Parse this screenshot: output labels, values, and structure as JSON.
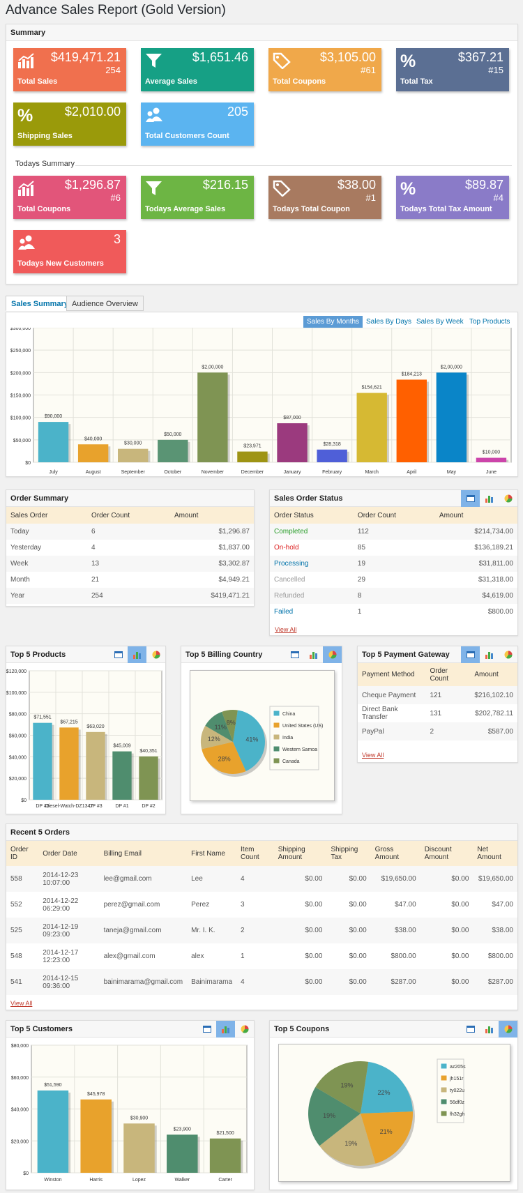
{
  "title": "Advance Sales Report (Gold Version)",
  "summary": {
    "heading": "Summary",
    "today_heading": "Todays Summary",
    "cards": [
      {
        "value": "$419,471.21",
        "sub": "254",
        "label": "Total Sales",
        "color": "#f0704e",
        "icon": "chart-icon"
      },
      {
        "value": "$1,651.46",
        "sub": "",
        "label": "Average Sales",
        "color": "#16a085",
        "icon": "funnel-icon"
      },
      {
        "value": "$3,105.00",
        "sub": "#61",
        "label": "Total Coupons",
        "color": "#f0a84a",
        "icon": "tag-icon"
      },
      {
        "value": "$367.21",
        "sub": "#15",
        "label": "Total Tax",
        "color": "#5b6f93",
        "icon": "percent-icon"
      },
      {
        "value": "$2,010.00",
        "sub": "",
        "label": "Shipping Sales",
        "color": "#9a9a0a",
        "icon": "percent-icon"
      },
      {
        "value": "205",
        "sub": "",
        "label": "Total Customers Count",
        "color": "#5bb4f0",
        "icon": "users-icon"
      }
    ],
    "today_cards": [
      {
        "value": "$1,296.87",
        "sub": "#6",
        "label": "Total Coupons",
        "color": "#e2557a",
        "icon": "chart-icon"
      },
      {
        "value": "$216.15",
        "sub": "",
        "label": "Todays Average Sales",
        "color": "#6db544",
        "icon": "funnel-icon"
      },
      {
        "value": "$38.00",
        "sub": "#1",
        "label": "Todays Total Coupon",
        "color": "#a87a60",
        "icon": "tag-icon"
      },
      {
        "value": "$89.87",
        "sub": "#4",
        "label": "Todays Total Tax Amount",
        "color": "#8a7bc8",
        "icon": "percent-icon"
      },
      {
        "value": "3",
        "sub": "",
        "label": "Todays New Customers",
        "color": "#f05a5a",
        "icon": "users-icon"
      }
    ]
  },
  "tabs": [
    "Sales Summary",
    "Audience Overview"
  ],
  "sales_links": [
    "Sales By Months",
    "Sales By Days",
    "Sales By Week",
    "Top Products"
  ],
  "chart_data": [
    {
      "type": "bar",
      "categories": [
        "July",
        "August",
        "September",
        "October",
        "November",
        "December",
        "January",
        "February",
        "March",
        "April",
        "May",
        "June"
      ],
      "values": [
        90000,
        40000,
        30000,
        50000,
        200000,
        23971,
        87000,
        28318,
        154621,
        184213,
        200000,
        10000
      ],
      "labels": [
        "$90,000",
        "$40,000",
        "$30,000",
        "$50,000",
        "$2,00,000",
        "$23,971",
        "$87,000",
        "$28,318",
        "$154,621",
        "$184,213",
        "$2,00,000",
        "$10,000"
      ],
      "ylim": [
        0,
        300000
      ],
      "yticks": [
        "$0",
        "$50,000",
        "$100,000",
        "$150,000",
        "$200,000",
        "$250,000",
        "$300,000"
      ],
      "colors": [
        "#4bb3c9",
        "#e8a22c",
        "#c8b67c",
        "#5a9474",
        "#7f9453",
        "#9e9414",
        "#9b3a7e",
        "#4f5fd8",
        "#d6b933",
        "#ff6000",
        "#0a85c8",
        "#cc44aa"
      ]
    },
    {
      "type": "bar",
      "title": "Top 5 Products",
      "categories": [
        "DP #3",
        "Diesel-Watch-DZ1347",
        "DP #3",
        "DP #1",
        "DP #2"
      ],
      "values": [
        71551,
        67215,
        63020,
        45009,
        40351
      ],
      "labels": [
        "$71,551",
        "$67,215",
        "$63,020",
        "$45,009",
        "$40,351"
      ],
      "ylim": [
        0,
        120000
      ],
      "yticks": [
        "$0",
        "$20,000",
        "$40,000",
        "$60,000",
        "$80,000",
        "$100,000",
        "$120,000"
      ]
    },
    {
      "type": "pie",
      "title": "Top 5 Billing Country",
      "categories": [
        "China",
        "United States (US)",
        "India",
        "Western Samoa",
        "Canada"
      ],
      "values": [
        41,
        28,
        12,
        11,
        8
      ],
      "labels": [
        "41%",
        "28%",
        "12%",
        "11%",
        "8%"
      ]
    },
    {
      "type": "bar",
      "title": "Top 5 Customers",
      "categories": [
        "Winston",
        "Harris",
        "Lopez",
        "Walker",
        "Carter"
      ],
      "values": [
        51590,
        45978,
        30900,
        23900,
        21500
      ],
      "labels": [
        "$51,590",
        "$45,978",
        "$30,900",
        "$23,900",
        "$21,500"
      ],
      "ylim": [
        0,
        80000
      ],
      "yticks": [
        "$0",
        "$20,000",
        "$40,000",
        "$60,000",
        "$80,000"
      ]
    },
    {
      "type": "pie",
      "title": "Top 5 Coupons",
      "categories": [
        "az205s",
        "jh151r",
        "ty022u",
        "56df0z",
        "fh32gh"
      ],
      "values": [
        22,
        21,
        19,
        19,
        19
      ],
      "labels": [
        "22%",
        "21%",
        "19%",
        "19%",
        "19%"
      ]
    }
  ],
  "order_summary": {
    "title": "Order Summary",
    "headers": [
      "Sales Order",
      "Order Count",
      "Amount"
    ],
    "rows": [
      [
        "Today",
        "6",
        "$1,296.87"
      ],
      [
        "Yesterday",
        "4",
        "$1,837.00"
      ],
      [
        "Week",
        "13",
        "$3,302.87"
      ],
      [
        "Month",
        "21",
        "$4,949.21"
      ],
      [
        "Year",
        "254",
        "$419,471.21"
      ]
    ]
  },
  "order_status": {
    "title": "Sales Order Status",
    "headers": [
      "Order Status",
      "Order Count",
      "Amount"
    ],
    "rows": [
      [
        "Completed",
        "112",
        "$214,734.00"
      ],
      [
        "On-hold",
        "85",
        "$136,189.21"
      ],
      [
        "Processing",
        "19",
        "$31,811.00"
      ],
      [
        "Cancelled",
        "29",
        "$31,318.00"
      ],
      [
        "Refunded",
        "8",
        "$4,619.00"
      ],
      [
        "Failed",
        "1",
        "$800.00"
      ]
    ],
    "status_colors": [
      "#2a9d2a",
      "#dd2222",
      "#0073aa",
      "#999999",
      "#999999",
      "#0073aa"
    ],
    "view_all": "View All"
  },
  "billing_title": "Top 5 Billing Country",
  "products_title": "Top 5 Products",
  "payment": {
    "title": "Top 5 Payment Gateway",
    "headers": [
      "Payment Method",
      "Order Count",
      "Amount"
    ],
    "rows": [
      [
        "Cheque Payment",
        "121",
        "$216,102.10"
      ],
      [
        "Direct Bank Transfer",
        "131",
        "$202,782.11"
      ],
      [
        "PayPal",
        "2",
        "$587.00"
      ]
    ],
    "view_all": "View All"
  },
  "recent": {
    "title": "Recent 5 Orders",
    "headers": [
      "Order ID",
      "Order Date",
      "Billing Email",
      "First Name",
      "Item Count",
      "Shipping Amount",
      "Shipping Tax",
      "Gross Amount",
      "Discount Amount",
      "Net Amount"
    ],
    "rows": [
      [
        "558",
        "2014-12-23 10:07:00",
        "lee@gmail.com",
        "Lee",
        "4",
        "$0.00",
        "$0.00",
        "$19,650.00",
        "$0.00",
        "$19,650.00"
      ],
      [
        "552",
        "2014-12-22 06:29:00",
        "perez@gmail.com",
        "Perez",
        "3",
        "$0.00",
        "$0.00",
        "$47.00",
        "$0.00",
        "$47.00"
      ],
      [
        "525",
        "2014-12-19 09:23:00",
        "taneja@gmail.com",
        "Mr. I. K.",
        "2",
        "$0.00",
        "$0.00",
        "$38.00",
        "$0.00",
        "$38.00"
      ],
      [
        "548",
        "2014-12-17 12:23:00",
        "alex@gmail.com",
        "alex",
        "1",
        "$0.00",
        "$0.00",
        "$800.00",
        "$0.00",
        "$800.00"
      ],
      [
        "541",
        "2014-12-15 09:36:00",
        "bainimarama@gmail.com",
        "Bainimarama",
        "4",
        "$0.00",
        "$0.00",
        "$287.00",
        "$0.00",
        "$287.00"
      ]
    ],
    "view_all": "View All"
  },
  "customers_title": "Top 5 Customers",
  "coupons_title": "Top 5 Coupons",
  "pie_colors": [
    "#4bb3c9",
    "#e8a22c",
    "#c8b67c",
    "#4f8d6e",
    "#7f9453"
  ]
}
